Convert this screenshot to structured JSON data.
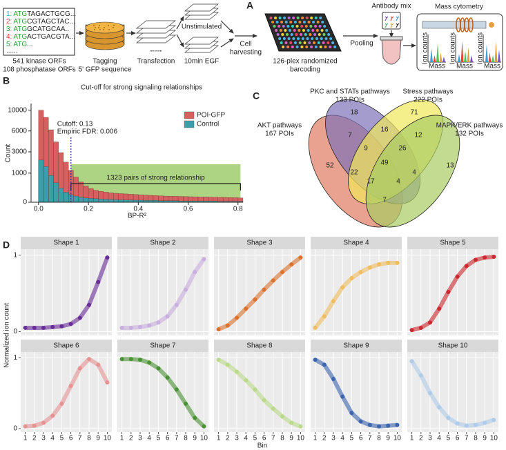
{
  "panel_labels": {
    "a": "A",
    "b": "B",
    "c": "C",
    "d": "D"
  },
  "workflow": {
    "sequences": [
      {
        "num": "1:",
        "start": "ATG",
        "rest": "TAGACTGCG..."
      },
      {
        "num": "2:",
        "start": "ATG",
        "rest": "CGTAGCTAC..."
      },
      {
        "num": "3:",
        "start": "ATG",
        "rest": "GCATGCAA.."
      },
      {
        "num": "4:",
        "start": "ATG",
        "rest": "ACTGACGTA..."
      },
      {
        "num": "5:",
        "start": "ATG",
        "rest": "..."
      }
    ],
    "sequences_more": "......",
    "orfs": [
      "541 kinase ORFs",
      "108 phosphatase ORFs"
    ],
    "tagging": [
      "Tagging",
      "5' GFP sequence"
    ],
    "transfection_dots": "......",
    "transfection": "Transfection",
    "unstimulated": "Unstimulated",
    "egf": "10min EGF",
    "harvesting": [
      "Cell",
      "harvesting"
    ],
    "barcoding": [
      "126-plex randomized",
      "barcoding"
    ],
    "antibody_mix": "Antibody mix",
    "pooling": "Pooling",
    "mass_cytometry": "Mass cytometry",
    "ion_counts": "Ion counts",
    "mass": "Mass"
  },
  "chart_data": [
    {
      "type": "histogram",
      "title": "Cut-off for strong signaling relationships",
      "xlabel": "BP-R²",
      "ylabel": "Count",
      "bins": [
        0,
        0.02,
        0.04,
        0.06,
        0.08,
        0.1,
        0.12,
        0.14,
        0.16,
        0.18,
        0.2,
        0.22,
        0.24,
        0.26,
        0.28,
        0.3,
        0.32,
        0.34,
        0.36,
        0.38,
        0.4,
        0.42,
        0.44,
        0.46,
        0.48,
        0.5,
        0.52,
        0.54,
        0.56,
        0.58,
        0.6,
        0.62,
        0.64,
        0.66,
        0.68,
        0.7,
        0.72,
        0.74,
        0.76,
        0.78,
        0.8,
        0.82
      ],
      "series": [
        {
          "name": "POI-GFP",
          "color": "#d65f5f",
          "values": [
            10000,
            8500,
            6200,
            4300,
            2900,
            1900,
            1200,
            750,
            480,
            320,
            220,
            170,
            140,
            120,
            105,
            95,
            88,
            82,
            76,
            70,
            64,
            60,
            56,
            52,
            48,
            45,
            44,
            42,
            40,
            38,
            36,
            35,
            34,
            33,
            31,
            30,
            28,
            27,
            26,
            24,
            22
          ]
        },
        {
          "name": "Control",
          "color": "#3a9fa8",
          "values": [
            2100,
            1500,
            850,
            450,
            230,
            120,
            70,
            45,
            30,
            22,
            18,
            15,
            12,
            10,
            9,
            8,
            7,
            6,
            6,
            5,
            5,
            4,
            4,
            4,
            3,
            3,
            3,
            3,
            2,
            2,
            2,
            2,
            2,
            2,
            2,
            2,
            1,
            1,
            1,
            1,
            1
          ]
        }
      ],
      "xlim": [
        -0.03,
        0.82
      ],
      "ylim": [
        0,
        11500
      ],
      "xticks": [
        {
          "value": 0,
          "label": "0.0"
        },
        0.2,
        0.4,
        0.6,
        0.8
      ],
      "yticks": [
        0,
        1000,
        3000,
        6000,
        10000
      ],
      "yscale": "sqrt",
      "legend": "upper right",
      "cutoff": {
        "value": 0.13,
        "labels": [
          "Cutoff: 0.13",
          "Empiric FDR: 0.006"
        ]
      },
      "strong_region": {
        "x": [
          0.13,
          0.81
        ],
        "top": 1700,
        "color": "#9fcd6c",
        "label": "1323 pairs of strong relationship"
      }
    },
    {
      "type": "venn",
      "sets": [
        {
          "name": "AKT pathways",
          "label": "167 POIs",
          "color": "#e07a5f"
        },
        {
          "name": "PKC and STATs pathways",
          "label": "133 POIs",
          "color": "#7d72b6"
        },
        {
          "name": "Stress pathways",
          "label": "222 POIs",
          "color": "#f1e85a"
        },
        {
          "name": "MAPK/ERK pathways",
          "label": "132 POIs",
          "color": "#a9cc62"
        }
      ],
      "regions": [
        {
          "sets": [
            0
          ],
          "value": 52
        },
        {
          "sets": [
            1
          ],
          "value": 18
        },
        {
          "sets": [
            2
          ],
          "value": 71
        },
        {
          "sets": [
            3
          ],
          "value": 13
        },
        {
          "sets": [
            0,
            1
          ],
          "value": 7
        },
        {
          "sets": [
            1,
            2
          ],
          "value": 16
        },
        {
          "sets": [
            2,
            3
          ],
          "value": 12
        },
        {
          "sets": [
            0,
            1,
            2
          ],
          "value": 9
        },
        {
          "sets": [
            1,
            2,
            3
          ],
          "value": 26
        },
        {
          "sets": [
            0,
            1,
            2,
            3
          ],
          "value": 49
        },
        {
          "sets": [
            0,
            2
          ],
          "value": 22
        },
        {
          "sets": [
            1,
            3
          ],
          "value": 4
        },
        {
          "sets": [
            0,
            2,
            3
          ],
          "value": 17
        },
        {
          "sets": [
            0,
            1,
            3
          ],
          "value": 4
        },
        {
          "sets": [
            0,
            3
          ],
          "value": 7
        }
      ]
    },
    {
      "type": "line",
      "ylabel": "Normalized ion count",
      "xlabel": "Bin",
      "x": [
        1,
        2,
        3,
        4,
        5,
        6,
        7,
        8,
        9,
        10
      ],
      "xlim": [
        0.5,
        10.5
      ],
      "ylim": [
        -0.05,
        1.08
      ],
      "xticks": [
        1,
        2,
        3,
        4,
        5,
        6,
        7,
        8,
        9,
        10
      ],
      "yticks": [
        0,
        1
      ],
      "grid": true,
      "panels": [
        {
          "title": "Shape 1",
          "color": "#5b1a8f",
          "values": [
            0.05,
            0.05,
            0.05,
            0.06,
            0.07,
            0.1,
            0.18,
            0.35,
            0.65,
            0.97
          ]
        },
        {
          "title": "Shape 2",
          "color": "#c4a7dc",
          "values": [
            0.05,
            0.05,
            0.06,
            0.08,
            0.12,
            0.2,
            0.35,
            0.55,
            0.78,
            0.95
          ]
        },
        {
          "title": "Shape 3",
          "color": "#d9661a",
          "values": [
            0.03,
            0.08,
            0.18,
            0.3,
            0.42,
            0.55,
            0.67,
            0.78,
            0.88,
            0.97
          ]
        },
        {
          "title": "Shape 4",
          "color": "#f0b850",
          "values": [
            0.05,
            0.2,
            0.4,
            0.58,
            0.7,
            0.78,
            0.84,
            0.88,
            0.9,
            0.9
          ]
        },
        {
          "title": "Shape 5",
          "color": "#c8161d",
          "values": [
            0.02,
            0.05,
            0.12,
            0.3,
            0.52,
            0.72,
            0.86,
            0.94,
            0.97,
            0.98
          ]
        },
        {
          "title": "Shape 6",
          "color": "#e58a8a",
          "values": [
            0.03,
            0.04,
            0.08,
            0.18,
            0.35,
            0.6,
            0.85,
            0.98,
            0.9,
            0.65
          ]
        },
        {
          "title": "Shape 7",
          "color": "#3a8a22",
          "values": [
            0.98,
            0.98,
            0.97,
            0.93,
            0.85,
            0.72,
            0.55,
            0.35,
            0.15,
            0.03
          ]
        },
        {
          "title": "Shape 8",
          "color": "#b6d880",
          "values": [
            0.97,
            0.9,
            0.8,
            0.68,
            0.55,
            0.4,
            0.28,
            0.17,
            0.08,
            0.03
          ]
        },
        {
          "title": "Shape 9",
          "color": "#2b58a8",
          "values": [
            0.97,
            0.9,
            0.7,
            0.45,
            0.22,
            0.1,
            0.05,
            0.03,
            0.04,
            0.05
          ]
        },
        {
          "title": "Shape 10",
          "color": "#a8c8e8",
          "values": [
            0.95,
            0.75,
            0.5,
            0.3,
            0.15,
            0.07,
            0.04,
            0.05,
            0.08,
            0.12
          ]
        }
      ]
    }
  ]
}
